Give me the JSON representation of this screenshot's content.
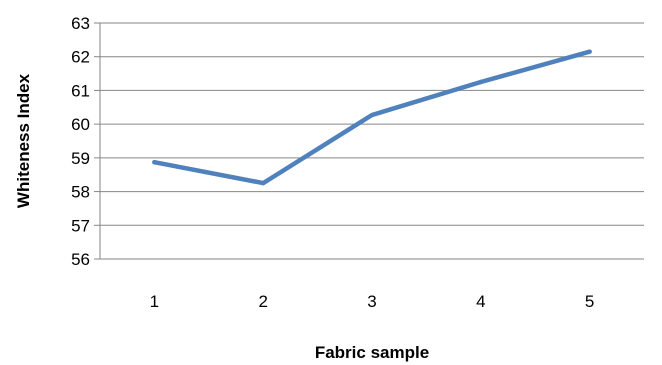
{
  "chart_data": {
    "type": "line",
    "title": "",
    "xlabel": "Fabric sample",
    "ylabel": "Whiteness Index",
    "categories": [
      "1",
      "2",
      "3",
      "4",
      "5"
    ],
    "series": [
      {
        "values": [
          58.87,
          58.25,
          60.27,
          61.25,
          62.15
        ]
      }
    ],
    "ylim": [
      56,
      63
    ],
    "yticks": [
      56,
      57,
      58,
      59,
      60,
      61,
      62,
      63
    ],
    "grid": "horizontal",
    "legend": "none",
    "colors": {
      "line": "#4f81bd",
      "grid": "#868686",
      "axis": "#868686"
    }
  }
}
